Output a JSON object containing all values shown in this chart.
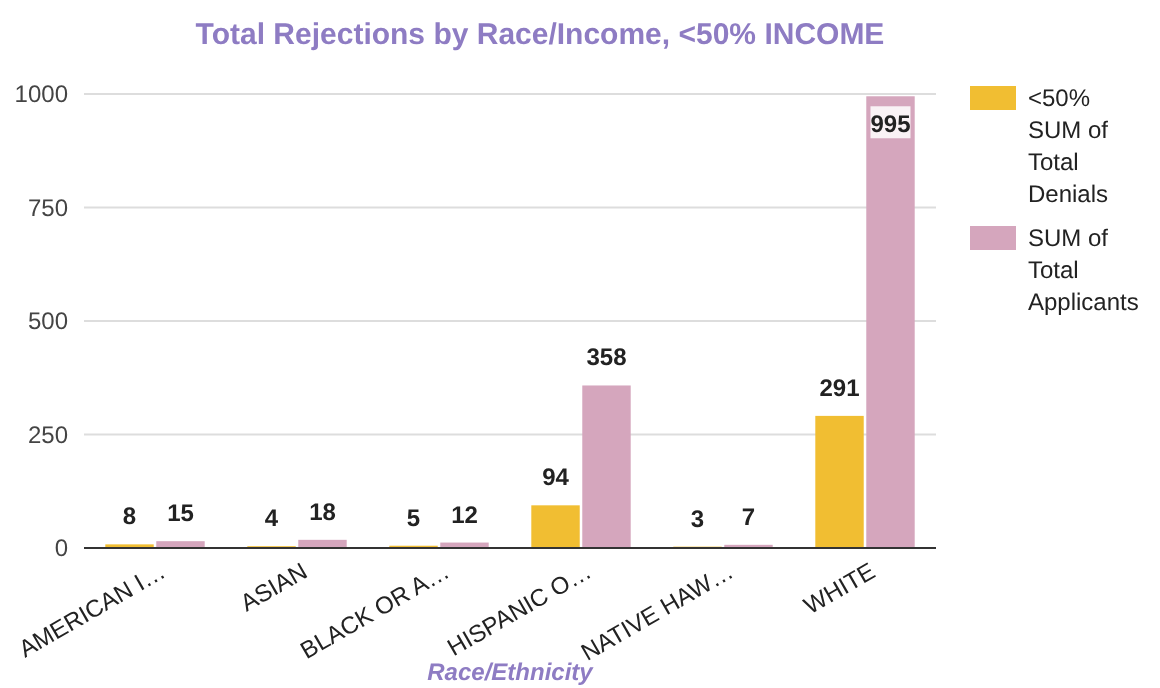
{
  "chart_data": {
    "type": "bar",
    "title": "Total Rejections by Race/Income, <50% INCOME",
    "xlabel": "Race/Ethnicity",
    "categories": [
      "AMERICAN I…",
      "ASIAN",
      "BLACK OR A…",
      "HISPANIC O…",
      "NATIVE HAW…",
      "WHITE"
    ],
    "series": [
      {
        "name": "<50% SUM of Total Denials",
        "color": "#f1be32",
        "values": [
          8,
          4,
          5,
          94,
          3,
          291
        ]
      },
      {
        "name": "SUM of Total Applicants",
        "color": "#d5a6bd",
        "values": [
          15,
          18,
          12,
          358,
          7,
          995
        ]
      }
    ],
    "ylim": [
      0,
      1000
    ],
    "yticks": [
      0,
      250,
      500,
      750,
      1000
    ],
    "grid": "y",
    "legend": "right",
    "data_labels": true
  }
}
